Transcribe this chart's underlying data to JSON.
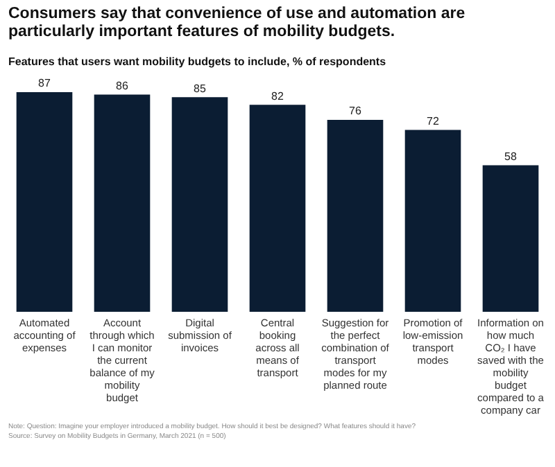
{
  "chart_data": {
    "type": "bar",
    "title": "Consumers say that convenience of use and automation are particularly important features of mobility budgets.",
    "subtitle": "Features that users want mobility budgets to include, % of respondents",
    "categories": [
      "Automated accounting of expenses",
      "Account through which I can monitor the current balance of my mobility budget",
      "Digital submission of invoices",
      "Central booking across all means of transport",
      "Suggestion for the perfect combination of transport modes for my planned route",
      "Promotion of low-emission transport modes",
      "Information on how much CO₂ I have saved with the mobility budget compared to a company car"
    ],
    "values": [
      87,
      86,
      85,
      82,
      76,
      72,
      58
    ],
    "color": "#0b1d33",
    "data_labels": true,
    "grid": false,
    "legend": false,
    "annotations": [
      "Note: Question: Imagine your employer introduced a mobility budget. How should it best be designed? What features should it have?",
      "Source: Survey on Mobility Budgets in Germany, March 2021 (n = 500)"
    ]
  }
}
